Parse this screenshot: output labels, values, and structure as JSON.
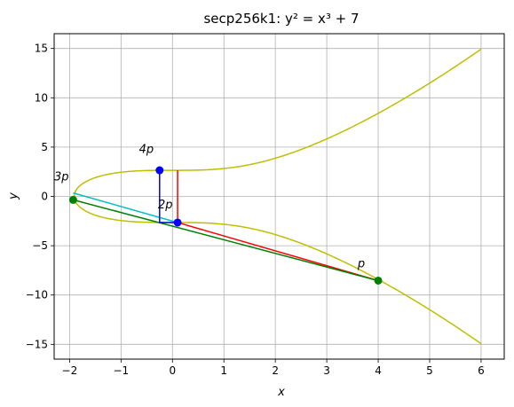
{
  "chart_data": {
    "type": "line",
    "title": "secp256k1: y² = x³ + 7",
    "xlabel": "x",
    "ylabel": "y",
    "xlim": [
      -2.3,
      6.45
    ],
    "ylim": [
      -16.5,
      16.5
    ],
    "grid": true,
    "x_ticks": [
      -2,
      -1,
      0,
      1,
      2,
      3,
      4,
      5,
      6
    ],
    "y_ticks": [
      15,
      10,
      5,
      0,
      -5,
      -10,
      -15
    ],
    "x_tick_labels": [
      "−2",
      "−1",
      "0",
      "1",
      "2",
      "3",
      "4",
      "5",
      "6"
    ],
    "y_tick_labels": [
      "15",
      "10",
      "5",
      "0",
      "−5",
      "−10",
      "−15"
    ],
    "curve": {
      "equation": "y^2 = x^3 + 7",
      "x_range": [
        -1.913,
        6
      ],
      "color": "#bfbf00"
    },
    "segments": [
      {
        "color": "#ff0000",
        "points": [
          [
            4,
            -8.54
          ],
          [
            0.1,
            -2.65
          ],
          [
            0.1,
            2.65
          ]
        ]
      },
      {
        "color": "#00bfbf",
        "points": [
          [
            0.1,
            -2.65
          ],
          [
            -1.93,
            0.35
          ]
        ]
      },
      {
        "color": "#008000",
        "points": [
          [
            4,
            -8.54
          ],
          [
            -1.93,
            -0.35
          ]
        ]
      },
      {
        "color": "#0000ff",
        "points": [
          [
            -0.25,
            2.65
          ],
          [
            -0.25,
            -2.65
          ],
          [
            0.1,
            -2.65
          ]
        ]
      }
    ],
    "points": [
      {
        "x": 4,
        "y": -8.54,
        "color": "#008000"
      },
      {
        "x": -1.93,
        "y": -0.35,
        "color": "#008000"
      },
      {
        "x": 0.1,
        "y": -2.65,
        "color": "#0000ff"
      },
      {
        "x": -0.25,
        "y": 2.65,
        "color": "#0000ff"
      }
    ],
    "annotations": [
      {
        "text": "p",
        "x": 3.6,
        "y": -7.2
      },
      {
        "text": "2p",
        "x": -0.28,
        "y": -1.2
      },
      {
        "text": "3p",
        "x": -2.3,
        "y": 1.6
      },
      {
        "text": "4p",
        "x": -0.65,
        "y": 4.4
      }
    ]
  }
}
